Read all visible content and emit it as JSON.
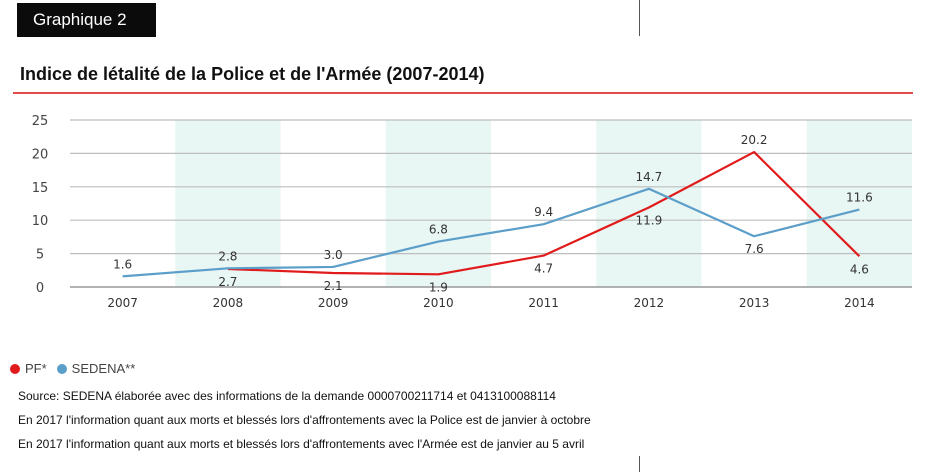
{
  "header": {
    "badge": "Graphique 2",
    "title": "Indice de létalité de la Police et de l'Armée (2007-2014)"
  },
  "chart_data": {
    "type": "line",
    "x": [
      "2007",
      "2008",
      "2009",
      "2010",
      "2011",
      "2012",
      "2013",
      "2014"
    ],
    "ylim": [
      0,
      25
    ],
    "yticks": [
      0,
      5,
      10,
      15,
      20,
      25
    ],
    "grid": true,
    "legend_position": "bottom-left",
    "series": [
      {
        "name": "PF*",
        "color": "#e11b1b",
        "values": [
          null,
          2.7,
          2.1,
          1.9,
          4.7,
          11.9,
          20.2,
          4.6
        ],
        "labels": [
          "",
          "2.7",
          "2.1",
          "1.9",
          "4.7",
          "11.9",
          "20.2",
          "4.6"
        ]
      },
      {
        "name": "SEDENA**",
        "color": "#5b9ec9",
        "values": [
          1.6,
          2.8,
          3.0,
          6.8,
          9.4,
          14.7,
          7.6,
          11.6
        ],
        "labels": [
          "1.6",
          "2.8",
          "3.0",
          "6.8",
          "9.4",
          "14.7",
          "7.6",
          "11.6"
        ]
      }
    ],
    "band_color": "#e8f6f4"
  },
  "notes": {
    "source": "Source: SEDENA élaborée avec des informations de la demande 0000700211714 et 0413100088114",
    "note1": "En 2017 l'information quant aux morts et blessés lors d'affrontements avec la Police est de janvier à octobre",
    "note2": "En 2017 l'information quant aux morts et blessés lors d'affrontements avec l'Armée est de janvier au 5 avril"
  }
}
